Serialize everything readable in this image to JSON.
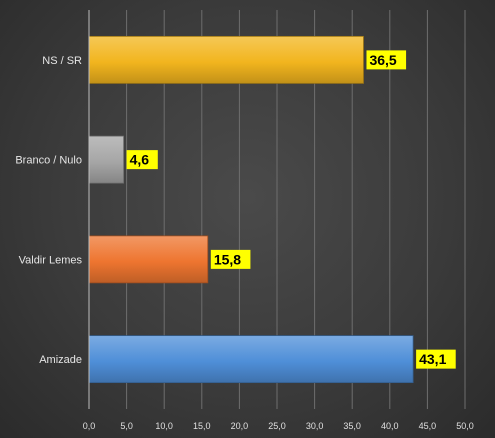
{
  "chart_data": {
    "type": "bar",
    "orientation": "horizontal",
    "categories": [
      "NS / SR",
      "Branco / Nulo",
      "Valdir Lemes",
      "Amizade"
    ],
    "values": [
      36.5,
      4.6,
      15.8,
      43.1
    ],
    "value_labels": [
      "36,5",
      "4,6",
      "15,8",
      "43,1"
    ],
    "bar_colors": [
      "#f2b51e",
      "#a6a6a6",
      "#ee7530",
      "#4f8fd8"
    ],
    "title": "",
    "xlabel": "",
    "ylabel": "",
    "xlim": [
      0,
      50
    ],
    "x_ticks": [
      0,
      5,
      10,
      15,
      20,
      25,
      30,
      35,
      40,
      45,
      50
    ],
    "x_tick_labels": [
      "0,0",
      "5,0",
      "10,0",
      "15,0",
      "20,0",
      "25,0",
      "30,0",
      "35,0",
      "40,0",
      "45,0",
      "50,0"
    ],
    "grid": "vertical",
    "legend": "none",
    "data_label_background": "#ffff00",
    "background": "#3f3f3f"
  }
}
